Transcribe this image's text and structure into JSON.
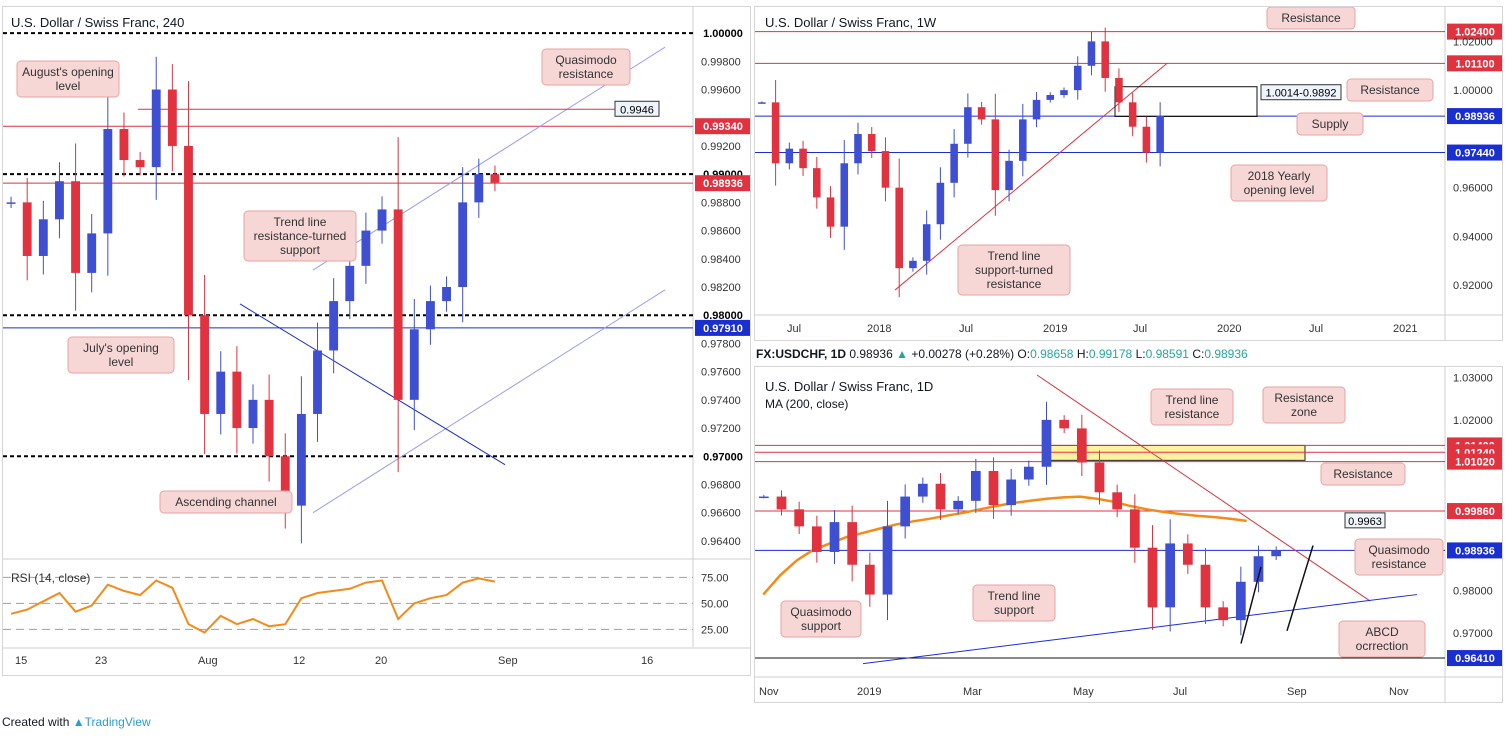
{
  "footer": {
    "created_with": "Created with",
    "brand": "TradingView"
  },
  "colors": {
    "bull": "#3f4fd1",
    "bear": "#e0323f",
    "support": "#1a2fcf",
    "resistance": "#e0323f",
    "channel": "#9a9cf0",
    "annotation_bg": "#f7d6d6",
    "annotation_border": "#e9a3a3",
    "ma": "#f48b19",
    "rsi": "#f48b19",
    "zone": "#fff3a0"
  },
  "chart_4h": {
    "title": "U.S. Dollar / Swiss Franc, 240",
    "scale_labels": [
      "0.99800",
      "0.99600",
      "0.99200",
      "0.98800",
      "0.98600",
      "0.98400",
      "0.98200",
      "0.97800",
      "0.97600",
      "0.97400",
      "0.97200",
      "0.96800",
      "0.96600",
      "0.96400"
    ],
    "x_labels": [
      "15",
      "23",
      "Aug",
      "12",
      "20",
      "Sep",
      "16"
    ],
    "tags": [
      {
        "text": "1.00000",
        "kind": "dark"
      },
      {
        "text": "0.99340",
        "kind": "red"
      },
      {
        "text": "0.99000",
        "kind": "dark"
      },
      {
        "text": "0.98936",
        "kind": "red"
      },
      {
        "text": "0.98000",
        "kind": "dark"
      },
      {
        "text": "0.97910",
        "kind": "blue"
      },
      {
        "text": "0.97000",
        "kind": "dark"
      }
    ],
    "callout_value": "0.9946",
    "annotations": [
      {
        "id": "augusts-opening",
        "text": "August's opening level"
      },
      {
        "id": "quasimodo-resistance",
        "text": "Quasimodo resistance"
      },
      {
        "id": "trend-line",
        "text": "Trend line resistance-turned support"
      },
      {
        "id": "julys-opening",
        "text": "July's opening level"
      },
      {
        "id": "ascending-channel",
        "text": "Ascending channel"
      }
    ],
    "rsi": {
      "label": "RSI (14, close)",
      "levels": [
        "75.00",
        "50.00",
        "25.00"
      ]
    }
  },
  "chart_1w": {
    "title": "U.S. Dollar / Swiss Franc, 1W",
    "scale_labels": [
      "1.02000",
      "1.00000",
      "0.96000",
      "0.94000",
      "0.92000"
    ],
    "x_labels": [
      "Jul",
      "2018",
      "Jul",
      "2019",
      "Jul",
      "2020",
      "Jul",
      "2021"
    ],
    "tags": [
      {
        "text": "1.02400",
        "kind": "red"
      },
      {
        "text": "1.01100",
        "kind": "red"
      },
      {
        "text": "0.98936",
        "kind": "blue"
      },
      {
        "text": "0.97440",
        "kind": "blue"
      }
    ],
    "callout_value": "1.0014-0.9892",
    "annotations": [
      {
        "id": "resistance-top",
        "text": "Resistance"
      },
      {
        "id": "resistance-mid",
        "text": "Resistance"
      },
      {
        "id": "supply",
        "text": "Supply"
      },
      {
        "id": "yearly-opening",
        "text": "2018 Yearly opening level"
      },
      {
        "id": "trend-line-support-turned",
        "text": "Trend line support-turned resistance"
      }
    ]
  },
  "ohlc": {
    "symbol": "FX:USDCHF, 1D",
    "price": "0.98936",
    "arrow": "▲",
    "change": "+0.00278 (+0.28%)",
    "o_label": "O:",
    "o": "0.98658",
    "h_label": "H:",
    "h": "0.99178",
    "l_label": "L:",
    "l": "0.98591",
    "c_label": "C:",
    "c": "0.98936"
  },
  "chart_1d": {
    "title": "U.S. Dollar / Swiss Franc, 1D",
    "subtitle": "MA (200, close)",
    "scale_labels": [
      "1.03000",
      "1.02000",
      "0.98000",
      "0.97000"
    ],
    "x_labels": [
      "Nov",
      "2019",
      "Mar",
      "May",
      "Jul",
      "Sep",
      "Nov"
    ],
    "tags": [
      {
        "text": "1.01400",
        "kind": "red"
      },
      {
        "text": "1.01240",
        "kind": "red"
      },
      {
        "text": "1.01020",
        "kind": "red"
      },
      {
        "text": "0.99860",
        "kind": "red"
      },
      {
        "text": "0.98936",
        "kind": "blue"
      },
      {
        "text": "0.96410",
        "kind": "blue"
      }
    ],
    "callout_value": "0.9963",
    "annotations": [
      {
        "id": "trend-line-resistance",
        "text": "Trend line resistance"
      },
      {
        "id": "resistance-zone",
        "text": "Resistance zone"
      },
      {
        "id": "resistance",
        "text": "Resistance"
      },
      {
        "id": "quasimodo-resistance",
        "text": "Quasimodo resistance"
      },
      {
        "id": "quasimodo-support",
        "text": "Quasimodo support"
      },
      {
        "id": "trend-line-support",
        "text": "Trend line support"
      },
      {
        "id": "abcd-correction",
        "text": "ABCD ocrrection"
      }
    ]
  },
  "chart_data": [
    {
      "type": "line",
      "title": "U.S. Dollar / Swiss Franc, 240",
      "series": [
        {
          "name": "USDCHF",
          "values": [
            0.988,
            0.9842,
            0.9868,
            0.9895,
            0.983,
            0.9858,
            0.9932,
            0.991,
            0.9905,
            0.996,
            0.992,
            0.98,
            0.973,
            0.976,
            0.972,
            0.974,
            0.97,
            0.9665,
            0.973,
            0.9775,
            0.981,
            0.9835,
            0.986,
            0.9875,
            0.974,
            0.979,
            0.981,
            0.982,
            0.988,
            0.99,
            0.9894
          ]
        }
      ],
      "ylim": [
        0.963,
        1.001
      ],
      "levels": [
        1.0,
        0.9934,
        0.99,
        0.98936,
        0.98,
        0.9791,
        0.97
      ]
    },
    {
      "type": "line",
      "title": "RSI (14, close)",
      "series": [
        {
          "name": "RSI",
          "values": [
            40,
            44,
            52,
            60,
            42,
            48,
            68,
            62,
            58,
            72,
            65,
            30,
            22,
            38,
            30,
            35,
            28,
            30,
            55,
            60,
            62,
            64,
            70,
            72,
            35,
            50,
            55,
            58,
            70,
            74,
            71
          ]
        }
      ],
      "ylim": [
        10,
        85
      ]
    },
    {
      "type": "line",
      "title": "U.S. Dollar / Swiss Franc, 1W",
      "series": [
        {
          "name": "USDCHF",
          "values": [
            0.995,
            0.97,
            0.976,
            0.968,
            0.956,
            0.944,
            0.97,
            0.982,
            0.975,
            0.96,
            0.927,
            0.93,
            0.945,
            0.962,
            0.978,
            0.993,
            0.988,
            0.959,
            0.971,
            0.988,
            0.996,
            0.998,
            1.0,
            1.01,
            1.02,
            1.005,
            0.995,
            0.985,
            0.9744,
            0.9894
          ]
        }
      ],
      "ylim": [
        0.909,
        1.03
      ],
      "levels": [
        1.024,
        1.011,
        0.98936,
        0.9744
      ]
    },
    {
      "type": "line",
      "title": "U.S. Dollar / Swiss Franc, 1D",
      "series": [
        {
          "name": "USDCHF",
          "values": [
            1.002,
            0.999,
            0.995,
            0.989,
            0.996,
            0.986,
            0.979,
            0.995,
            1.002,
            1.005,
            0.999,
            1.001,
            1.008,
            1.0,
            1.006,
            1.009,
            1.02,
            1.018,
            1.01,
            1.003,
            0.999,
            0.99,
            0.976,
            0.991,
            0.986,
            0.976,
            0.973,
            0.982,
            0.988,
            0.9894
          ]
        },
        {
          "name": "MA (200, close)",
          "values": [
            0.979,
            0.9835,
            0.987,
            0.9895,
            0.991,
            0.9925,
            0.9935,
            0.9945,
            0.9955,
            0.9962,
            0.9968,
            0.9975,
            0.9982,
            0.999,
            0.9998,
            1.0005,
            1.001,
            1.0015,
            1.0018,
            1.002,
            1.0015,
            1.0008,
            0.9998,
            0.999,
            0.9984,
            0.9979,
            0.9975,
            0.9972,
            0.9968,
            0.9963
          ]
        }
      ],
      "ylim": [
        0.962,
        1.031
      ],
      "levels": [
        1.014,
        1.0124,
        1.0102,
        0.9986,
        0.98936,
        0.9641
      ]
    }
  ]
}
